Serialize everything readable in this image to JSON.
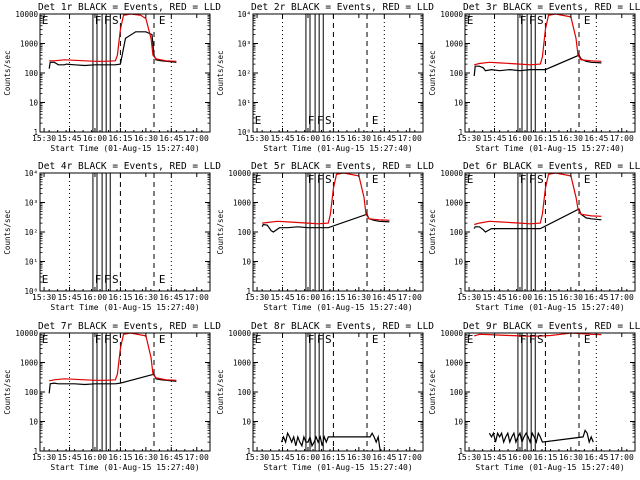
{
  "colors": {
    "events": "#000000",
    "lld": "#e00000",
    "axis": "#000000",
    "background": "#ffffff"
  },
  "figure": {
    "xlabel": "Start Time (01-Aug-15 15:27:40)",
    "ylabel": "Counts/sec",
    "x_tick_labels": [
      "15:30",
      "15:45",
      "16:00",
      "16:15",
      "16:30",
      "16:45",
      "17:00"
    ],
    "y_tick_labels": [
      "1",
      "10",
      "100",
      "1000",
      "10000"
    ],
    "y_tick_labels_empty": [
      "10⁰",
      "10¹",
      "10²",
      "10³",
      "10⁴"
    ]
  },
  "chart_data": [
    {
      "type": "line",
      "title": "Det 1r BLACK = Events, RED = LLD",
      "empty": false,
      "xlim": [
        15.46,
        17.13
      ],
      "ylim": [
        1,
        10000
      ],
      "yscale": "log",
      "markers": [
        {
          "label": "E",
          "x": 15.51
        },
        {
          "label": "F",
          "x": 16.03
        },
        {
          "label": "F",
          "x": 16.12
        },
        {
          "label": "S",
          "x": 16.2
        },
        {
          "label": "E",
          "x": 16.66
        }
      ],
      "vlines_solid": [
        15.98,
        16.02,
        16.07,
        16.11,
        16.15
      ],
      "vlines_dashed": [
        16.25,
        16.58
      ],
      "vlines_dotted": [
        15.75,
        16.75
      ],
      "series": [
        {
          "name": "Events",
          "x": [
            15.55,
            15.56,
            15.6,
            15.62,
            15.64,
            15.7,
            15.72,
            15.8,
            15.9,
            16.0,
            16.1,
            16.2,
            16.25,
            16.3,
            16.4,
            16.5,
            16.56,
            16.58,
            16.6,
            16.65,
            16.7,
            16.8
          ],
          "y": [
            140,
            230,
            230,
            210,
            190,
            190,
            200,
            190,
            180,
            190,
            190,
            190,
            200,
            1500,
            2500,
            2500,
            2000,
            400,
            280,
            260,
            250,
            230
          ]
        },
        {
          "name": "LLD",
          "x": [
            15.55,
            15.6,
            15.7,
            15.8,
            15.9,
            16.0,
            16.1,
            16.2,
            16.22,
            16.25,
            16.28,
            16.35,
            16.45,
            16.5,
            16.55,
            16.57,
            16.6,
            16.65,
            16.7,
            16.8
          ],
          "y": [
            260,
            260,
            280,
            270,
            260,
            250,
            250,
            260,
            400,
            3000,
            9000,
            10000,
            9000,
            7000,
            1500,
            400,
            300,
            280,
            260,
            250
          ]
        }
      ]
    },
    {
      "type": "line",
      "title": "Det 2r BLACK = Events, RED = LLD",
      "empty": true,
      "xlim": [
        15.46,
        17.13
      ],
      "ylim": [
        1,
        10000
      ],
      "yscale": "log",
      "markers": [
        {
          "label": "E",
          "x": 15.51
        },
        {
          "label": "F",
          "x": 16.03
        },
        {
          "label": "F",
          "x": 16.12
        },
        {
          "label": "S",
          "x": 16.2
        },
        {
          "label": "E",
          "x": 16.66
        }
      ],
      "vlines_solid": [
        15.98,
        16.02,
        16.07,
        16.11,
        16.15
      ],
      "vlines_dashed": [
        16.25,
        16.58
      ],
      "vlines_dotted": [
        15.75,
        16.75
      ],
      "series": []
    },
    {
      "type": "line",
      "title": "Det 3r BLACK = Events, RED = LLD",
      "empty": false,
      "xlim": [
        15.46,
        17.13
      ],
      "ylim": [
        1,
        10000
      ],
      "yscale": "log",
      "markers": [
        {
          "label": "E",
          "x": 15.51
        },
        {
          "label": "F",
          "x": 16.03
        },
        {
          "label": "F",
          "x": 16.12
        },
        {
          "label": "S",
          "x": 16.2
        },
        {
          "label": "E",
          "x": 16.66
        }
      ],
      "vlines_solid": [
        15.98,
        16.02,
        16.07,
        16.11,
        16.15
      ],
      "vlines_dashed": [
        16.25,
        16.58
      ],
      "vlines_dotted": [
        15.75,
        16.75
      ],
      "series": [
        {
          "name": "Events",
          "x": [
            15.55,
            15.56,
            15.6,
            15.64,
            15.66,
            15.72,
            15.8,
            15.9,
            16.0,
            16.1,
            16.2,
            16.25,
            16.58,
            16.6,
            16.65,
            16.7,
            16.8
          ],
          "y": [
            80,
            170,
            170,
            150,
            120,
            130,
            120,
            130,
            120,
            130,
            130,
            130,
            400,
            300,
            250,
            230,
            220
          ]
        },
        {
          "name": "LLD",
          "x": [
            15.55,
            15.6,
            15.7,
            15.8,
            15.9,
            16.0,
            16.1,
            16.2,
            16.22,
            16.25,
            16.28,
            16.35,
            16.5,
            16.55,
            16.57,
            16.6,
            16.7,
            16.8
          ],
          "y": [
            190,
            210,
            230,
            220,
            210,
            200,
            190,
            200,
            350,
            3000,
            9000,
            10000,
            8000,
            1500,
            400,
            280,
            260,
            250
          ]
        }
      ]
    },
    {
      "type": "line",
      "title": "Det 4r BLACK = Events, RED = LLD",
      "empty": true,
      "xlim": [
        15.46,
        17.13
      ],
      "ylim": [
        1,
        10000
      ],
      "yscale": "log",
      "markers": [
        {
          "label": "E",
          "x": 15.51
        },
        {
          "label": "F",
          "x": 16.03
        },
        {
          "label": "F",
          "x": 16.12
        },
        {
          "label": "S",
          "x": 16.2
        },
        {
          "label": "E",
          "x": 16.66
        }
      ],
      "vlines_solid": [
        15.98,
        16.02,
        16.07,
        16.11,
        16.15
      ],
      "vlines_dashed": [
        16.25,
        16.58
      ],
      "vlines_dotted": [
        15.75,
        16.75
      ],
      "series": []
    },
    {
      "type": "line",
      "title": "Det 5r BLACK = Events, RED = LLD",
      "empty": false,
      "xlim": [
        15.46,
        17.13
      ],
      "ylim": [
        1,
        10000
      ],
      "yscale": "log",
      "markers": [
        {
          "label": "E",
          "x": 15.51
        },
        {
          "label": "F",
          "x": 16.03
        },
        {
          "label": "F",
          "x": 16.12
        },
        {
          "label": "S",
          "x": 16.2
        },
        {
          "label": "E",
          "x": 16.66
        }
      ],
      "vlines_solid": [
        15.98,
        16.02,
        16.07,
        16.11,
        16.15
      ],
      "vlines_dashed": [
        16.25,
        16.58
      ],
      "vlines_dotted": [
        15.75,
        16.75
      ],
      "series": [
        {
          "name": "Events",
          "x": [
            15.55,
            15.56,
            15.6,
            15.64,
            15.66,
            15.72,
            15.8,
            15.9,
            16.0,
            16.1,
            16.2,
            16.58,
            16.6,
            16.65,
            16.7,
            16.8
          ],
          "y": [
            150,
            180,
            170,
            110,
            100,
            140,
            140,
            150,
            140,
            140,
            140,
            400,
            280,
            250,
            230,
            220
          ]
        },
        {
          "name": "LLD",
          "x": [
            15.55,
            15.6,
            15.7,
            15.8,
            15.9,
            16.0,
            16.1,
            16.2,
            16.22,
            16.25,
            16.28,
            16.35,
            16.5,
            16.55,
            16.57,
            16.6,
            16.7,
            16.8
          ],
          "y": [
            200,
            210,
            230,
            220,
            210,
            200,
            190,
            200,
            400,
            3000,
            9000,
            10000,
            8000,
            1500,
            400,
            280,
            260,
            250
          ]
        }
      ]
    },
    {
      "type": "line",
      "title": "Det 6r BLACK = Events, RED = LLD",
      "empty": false,
      "xlim": [
        15.46,
        17.13
      ],
      "ylim": [
        1,
        10000
      ],
      "yscale": "log",
      "markers": [
        {
          "label": "E",
          "x": 15.51
        },
        {
          "label": "F",
          "x": 16.03
        },
        {
          "label": "F",
          "x": 16.12
        },
        {
          "label": "S",
          "x": 16.2
        },
        {
          "label": "E",
          "x": 16.66
        }
      ],
      "vlines_solid": [
        15.98,
        16.02,
        16.07,
        16.11,
        16.15
      ],
      "vlines_dashed": [
        16.25,
        16.58
      ],
      "vlines_dotted": [
        15.75,
        16.75
      ],
      "series": [
        {
          "name": "Events",
          "x": [
            15.55,
            15.56,
            15.6,
            15.64,
            15.66,
            15.72,
            15.8,
            15.9,
            16.0,
            16.1,
            16.2,
            16.58,
            16.6,
            16.65,
            16.7,
            16.8
          ],
          "y": [
            130,
            150,
            150,
            120,
            100,
            130,
            130,
            130,
            130,
            130,
            130,
            600,
            400,
            300,
            280,
            260
          ]
        },
        {
          "name": "LLD",
          "x": [
            15.55,
            15.6,
            15.7,
            15.8,
            15.9,
            16.0,
            16.1,
            16.2,
            16.22,
            16.25,
            16.28,
            16.35,
            16.5,
            16.55,
            16.57,
            16.6,
            16.7,
            16.8
          ],
          "y": [
            180,
            200,
            230,
            220,
            210,
            200,
            190,
            200,
            400,
            3000,
            9000,
            10000,
            8000,
            1500,
            600,
            400,
            350,
            340
          ]
        }
      ]
    },
    {
      "type": "line",
      "title": "Det 7r BLACK = Events, RED = LLD",
      "empty": false,
      "xlim": [
        15.46,
        17.13
      ],
      "ylim": [
        1,
        10000
      ],
      "yscale": "log",
      "markers": [
        {
          "label": "E",
          "x": 15.51
        },
        {
          "label": "F",
          "x": 16.03
        },
        {
          "label": "F",
          "x": 16.12
        },
        {
          "label": "S",
          "x": 16.2
        },
        {
          "label": "E",
          "x": 16.66
        }
      ],
      "vlines_solid": [
        15.98,
        16.02,
        16.07,
        16.11,
        16.15
      ],
      "vlines_dashed": [
        16.25,
        16.58
      ],
      "vlines_dotted": [
        15.75,
        16.75
      ],
      "series": [
        {
          "name": "Events",
          "x": [
            15.55,
            15.56,
            15.6,
            15.64,
            15.7,
            15.8,
            15.9,
            16.0,
            16.1,
            16.2,
            16.25,
            16.58,
            16.6,
            16.65,
            16.7,
            16.8
          ],
          "y": [
            90,
            190,
            200,
            190,
            190,
            190,
            180,
            190,
            190,
            190,
            200,
            400,
            280,
            260,
            250,
            230
          ]
        },
        {
          "name": "LLD",
          "x": [
            15.55,
            15.6,
            15.7,
            15.8,
            15.9,
            16.0,
            16.1,
            16.2,
            16.22,
            16.25,
            16.28,
            16.35,
            16.5,
            16.55,
            16.57,
            16.6,
            16.7,
            16.8
          ],
          "y": [
            240,
            260,
            280,
            270,
            260,
            250,
            250,
            260,
            400,
            3000,
            9000,
            10000,
            8000,
            1500,
            400,
            300,
            260,
            250
          ]
        }
      ]
    },
    {
      "type": "line",
      "title": "Det 8r BLACK = Events, RED = LLD",
      "empty": false,
      "xlim": [
        15.46,
        17.13
      ],
      "ylim": [
        1,
        10000
      ],
      "yscale": "log",
      "markers": [
        {
          "label": "E",
          "x": 15.51
        },
        {
          "label": "F",
          "x": 16.03
        },
        {
          "label": "F",
          "x": 16.12
        },
        {
          "label": "S",
          "x": 16.2
        },
        {
          "label": "E",
          "x": 16.66
        }
      ],
      "vlines_solid": [
        15.98,
        16.02,
        16.07,
        16.11,
        16.15
      ],
      "vlines_dashed": [
        16.25,
        16.58
      ],
      "vlines_dotted": [
        15.75,
        16.75
      ],
      "series": [
        {
          "name": "Events",
          "x": [
            15.74,
            15.76,
            15.78,
            15.8,
            15.82,
            15.84,
            15.86,
            15.88,
            15.9,
            15.92,
            15.94,
            15.96,
            15.98,
            16.0,
            16.02,
            16.04,
            16.06,
            16.08,
            16.1,
            16.12,
            16.14,
            16.16,
            16.18,
            16.2,
            16.61,
            16.63,
            16.65,
            16.67,
            16.69,
            16.71
          ],
          "y": [
            2,
            3,
            2,
            4,
            3,
            2,
            3,
            1.5,
            3,
            2,
            1.5,
            3,
            2,
            2,
            3,
            1.5,
            2,
            3,
            2,
            3,
            1.5,
            3,
            2,
            3,
            3,
            4,
            3,
            2,
            3,
            1
          ]
        }
      ]
    },
    {
      "type": "line",
      "title": "Det 9r BLACK = Events, RED = LLD",
      "empty": false,
      "xlim": [
        15.46,
        17.13
      ],
      "ylim": [
        1,
        10000
      ],
      "yscale": "log",
      "markers": [
        {
          "label": "E",
          "x": 15.51
        },
        {
          "label": "F",
          "x": 16.03
        },
        {
          "label": "F",
          "x": 16.12
        },
        {
          "label": "S",
          "x": 16.2
        },
        {
          "label": "E",
          "x": 16.66
        }
      ],
      "vlines_solid": [
        15.98,
        16.02,
        16.07,
        16.11,
        16.15
      ],
      "vlines_dashed": [
        16.25,
        16.58
      ],
      "vlines_dotted": [
        15.75,
        16.75
      ],
      "series": [
        {
          "name": "Events",
          "x": [
            15.7,
            15.72,
            15.74,
            15.76,
            15.78,
            15.8,
            15.82,
            15.84,
            15.86,
            15.88,
            15.9,
            15.92,
            15.94,
            15.96,
            15.98,
            16.0,
            16.02,
            16.04,
            16.06,
            16.08,
            16.1,
            16.12,
            16.14,
            16.16,
            16.18,
            16.2,
            16.22,
            16.62,
            16.64,
            16.66,
            16.68,
            16.7,
            16.72
          ],
          "y": [
            4,
            3,
            4,
            2,
            4,
            3,
            4,
            2,
            3,
            4,
            2,
            3,
            4,
            2,
            3,
            4,
            2,
            3,
            4,
            3,
            2,
            4,
            3,
            2,
            4,
            3,
            2,
            3,
            5,
            4,
            2,
            3,
            2
          ]
        },
        {
          "name": "LLD",
          "x": [
            15.55,
            15.6,
            15.7,
            15.8,
            15.9,
            16.0,
            16.1,
            16.2,
            16.3,
            16.4,
            16.5,
            16.6,
            16.7,
            16.8
          ],
          "y": [
            8000,
            9000,
            8800,
            8500,
            8200,
            8000,
            7800,
            7900,
            8200,
            9000,
            10000,
            9500,
            9000,
            8800
          ]
        }
      ]
    }
  ]
}
